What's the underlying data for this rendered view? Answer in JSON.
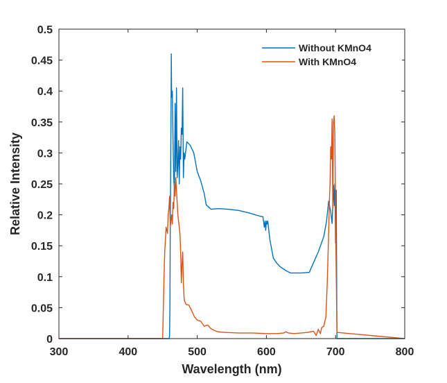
{
  "chart_data": {
    "type": "line",
    "title": "",
    "xlabel": "Wavelength (nm)",
    "ylabel": "Relative Intensity",
    "xlim": [
      300,
      800
    ],
    "ylim": [
      0,
      0.5
    ],
    "xticks": [
      300,
      400,
      500,
      600,
      700,
      800
    ],
    "yticks": [
      0,
      0.05,
      0.1,
      0.15,
      0.2,
      0.25,
      0.3,
      0.35,
      0.4,
      0.45,
      0.5
    ],
    "xtick_labels": [
      "300",
      "400",
      "500",
      "600",
      "700",
      "800"
    ],
    "ytick_labels": [
      "0",
      "0.05",
      "0.1",
      "0.15",
      "0.2",
      "0.25",
      "0.3",
      "0.35",
      "0.4",
      "0.45",
      "0.5"
    ],
    "grid": false,
    "legend_position": "top-right",
    "series": [
      {
        "name": "Without KMnO4",
        "color": "#0072BD",
        "x": [
          300,
          459.5,
          460,
          460.5,
          461,
          462,
          462.5,
          463,
          464,
          465,
          466,
          467,
          468,
          469,
          470,
          471,
          472,
          473,
          474,
          475,
          476,
          477,
          478,
          479,
          480,
          481,
          482,
          485,
          490,
          495,
          500,
          505,
          510,
          513,
          520,
          530,
          545,
          560,
          575,
          590,
          595,
          597,
          598,
          599,
          600,
          601,
          602,
          605,
          610,
          615,
          620,
          628,
          635,
          650,
          662,
          675,
          683,
          687,
          690,
          693,
          695,
          697,
          698,
          699,
          700,
          701,
          701.5,
          702,
          800
        ],
        "y": [
          0,
          0,
          0.005,
          0.05,
          0.18,
          0.34,
          0.46,
          0.39,
          0.4,
          0.32,
          0.26,
          0.24,
          0.38,
          0.27,
          0.405,
          0.26,
          0.28,
          0.32,
          0.25,
          0.31,
          0.29,
          0.34,
          0.33,
          0.405,
          0.26,
          0.3,
          0.29,
          0.318,
          0.312,
          0.3,
          0.27,
          0.255,
          0.235,
          0.216,
          0.209,
          0.21,
          0.209,
          0.207,
          0.203,
          0.198,
          0.197,
          0.18,
          0.19,
          0.175,
          0.19,
          0.185,
          0.19,
          0.16,
          0.13,
          0.122,
          0.116,
          0.11,
          0.106,
          0.106,
          0.107,
          0.14,
          0.165,
          0.19,
          0.222,
          0.205,
          0.186,
          0.248,
          0.215,
          0.25,
          0.154,
          0.24,
          0.12,
          0,
          0
        ]
      },
      {
        "name": "With KMnO4",
        "color": "#D95319",
        "x": [
          300,
          450,
          452,
          453,
          455,
          457,
          458,
          459,
          460,
          461,
          462,
          463,
          464,
          465,
          466,
          467,
          468,
          469,
          470,
          471,
          472,
          473,
          474,
          475,
          476,
          477,
          478,
          479,
          480,
          481,
          482,
          484,
          488,
          492,
          496,
          500,
          505,
          510,
          515,
          520,
          525,
          530,
          540,
          560,
          580,
          600,
          615,
          625,
          628,
          632,
          640,
          650,
          660,
          668,
          672,
          675,
          678,
          680,
          683,
          686,
          688,
          690,
          691,
          692,
          693,
          694,
          695,
          696,
          697,
          698,
          699,
          700,
          701,
          702,
          800
        ],
        "y": [
          0,
          0,
          0.1,
          0.14,
          0.18,
          0.17,
          0.2,
          0.21,
          0.23,
          0.18,
          0.19,
          0.2,
          0.185,
          0.22,
          0.21,
          0.25,
          0.23,
          0.26,
          0.24,
          0.22,
          0.2,
          0.19,
          0.18,
          0.17,
          0.14,
          0.09,
          0.12,
          0.14,
          0.09,
          0.065,
          0.06,
          0.055,
          0.054,
          0.045,
          0.035,
          0.03,
          0.028,
          0.02,
          0.022,
          0.016,
          0.013,
          0.011,
          0.01,
          0.009,
          0.009,
          0.008,
          0.008,
          0.009,
          0.011,
          0.009,
          0.008,
          0.009,
          0.01,
          0.012,
          0.005,
          0.015,
          0.008,
          0.018,
          0.02,
          0.035,
          0.09,
          0.17,
          0.22,
          0.25,
          0.31,
          0.29,
          0.355,
          0.21,
          0.35,
          0.36,
          0.33,
          0.2,
          0.1,
          0.01,
          0
        ]
      }
    ]
  }
}
